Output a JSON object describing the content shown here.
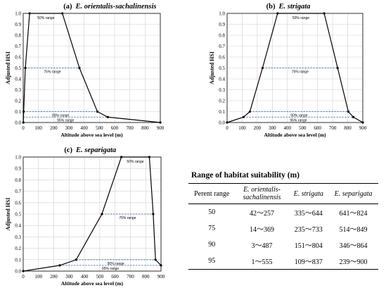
{
  "chart_data": [
    {
      "type": "line",
      "panel_label": "(a)",
      "title": "E. orientalis-sachalinensis",
      "xlabel": "Altitude above sea level (m)",
      "ylabel": "Adjusted HSI",
      "xlim": [
        0,
        900
      ],
      "ylim": [
        0,
        1.0
      ],
      "xticks": [
        0,
        100,
        200,
        300,
        400,
        500,
        600,
        700,
        800,
        900
      ],
      "yticks": [
        0,
        0.1,
        0.2,
        0.3,
        0.4,
        0.5,
        0.6,
        0.7,
        0.8,
        0.9,
        1.0
      ],
      "grid": true,
      "series": [
        {
          "x": [
            1,
            3,
            14,
            42,
            257,
            369,
            487,
            555,
            900
          ],
          "y": [
            0,
            0.1,
            0.5,
            1.0,
            1.0,
            0.5,
            0.1,
            0.05,
            0
          ]
        }
      ],
      "ranges": [
        {
          "label": "50% range",
          "y": 1.0,
          "x": [
            42,
            257
          ]
        },
        {
          "label": "75% range",
          "y": 0.5,
          "x": [
            14,
            369
          ]
        },
        {
          "label": "90% range",
          "y": 0.1,
          "x": [
            3,
            487
          ]
        },
        {
          "label": "95% range",
          "y": 0.05,
          "x": [
            1,
            555
          ]
        }
      ]
    },
    {
      "type": "line",
      "panel_label": "(b)",
      "title": "E. strigata",
      "xlabel": "Altitude above sea level (m)",
      "ylabel": "Adjusted HSI",
      "xlim": [
        0,
        900
      ],
      "ylim": [
        0,
        1.0
      ],
      "xticks": [
        0,
        100,
        200,
        300,
        400,
        500,
        600,
        700,
        800,
        900
      ],
      "yticks": [
        0,
        0.1,
        0.2,
        0.3,
        0.4,
        0.5,
        0.6,
        0.7,
        0.8,
        0.9,
        1.0
      ],
      "grid": true,
      "series": [
        {
          "x": [
            0,
            109,
            151,
            235,
            335,
            644,
            733,
            804,
            837,
            900
          ],
          "y": [
            0,
            0.05,
            0.1,
            0.5,
            1.0,
            1.0,
            0.5,
            0.1,
            0.05,
            0
          ]
        }
      ],
      "ranges": [
        {
          "label": "50% range",
          "y": 1.0,
          "x": [
            335,
            644
          ]
        },
        {
          "label": "75% range",
          "y": 0.5,
          "x": [
            235,
            733
          ]
        },
        {
          "label": "90% range",
          "y": 0.1,
          "x": [
            151,
            804
          ]
        },
        {
          "label": "95% range",
          "y": 0.05,
          "x": [
            109,
            837
          ]
        }
      ]
    },
    {
      "type": "line",
      "panel_label": "(c)",
      "title": "E. separigata",
      "xlabel": "Altitude above sea level (m)",
      "ylabel": "Adjusted HSI",
      "xlim": [
        0,
        900
      ],
      "ylim": [
        0,
        1.0
      ],
      "xticks": [
        0,
        100,
        200,
        300,
        400,
        500,
        600,
        700,
        800,
        900
      ],
      "yticks": [
        0,
        0.1,
        0.2,
        0.3,
        0.4,
        0.5,
        0.6,
        0.7,
        0.8,
        0.9,
        1.0
      ],
      "grid": true,
      "series": [
        {
          "x": [
            0,
            239,
            346,
            514,
            641,
            824,
            849,
            864,
            900
          ],
          "y": [
            0,
            0.05,
            0.1,
            0.5,
            1.0,
            1.0,
            0.5,
            0.1,
            0.05
          ]
        }
      ],
      "ranges": [
        {
          "label": "50% range",
          "y": 1.0,
          "x": [
            641,
            824
          ]
        },
        {
          "label": "75% range",
          "y": 0.5,
          "x": [
            514,
            849
          ]
        },
        {
          "label": "90% range",
          "y": 0.1,
          "x": [
            346,
            864
          ]
        },
        {
          "label": "95% range",
          "y": 0.05,
          "x": [
            239,
            900
          ]
        }
      ]
    }
  ],
  "table": {
    "title": "Range of habitat suitability (m)",
    "headers": [
      "Perent range",
      "E. orientalis-sachalinensis",
      "E. strigata",
      "E. separigata"
    ],
    "rows": [
      [
        "50",
        "42～257",
        "335～644",
        "641～824"
      ],
      [
        "75",
        "14～369",
        "235～733",
        "514～849"
      ],
      [
        "90",
        "3～487",
        "151～804",
        "346～864"
      ],
      [
        "95",
        "1～555",
        "109～837",
        "239～900"
      ]
    ]
  },
  "colors": {
    "line": "#000000",
    "range_line": "#2E5FA8",
    "grid": "#D0D0D0"
  }
}
